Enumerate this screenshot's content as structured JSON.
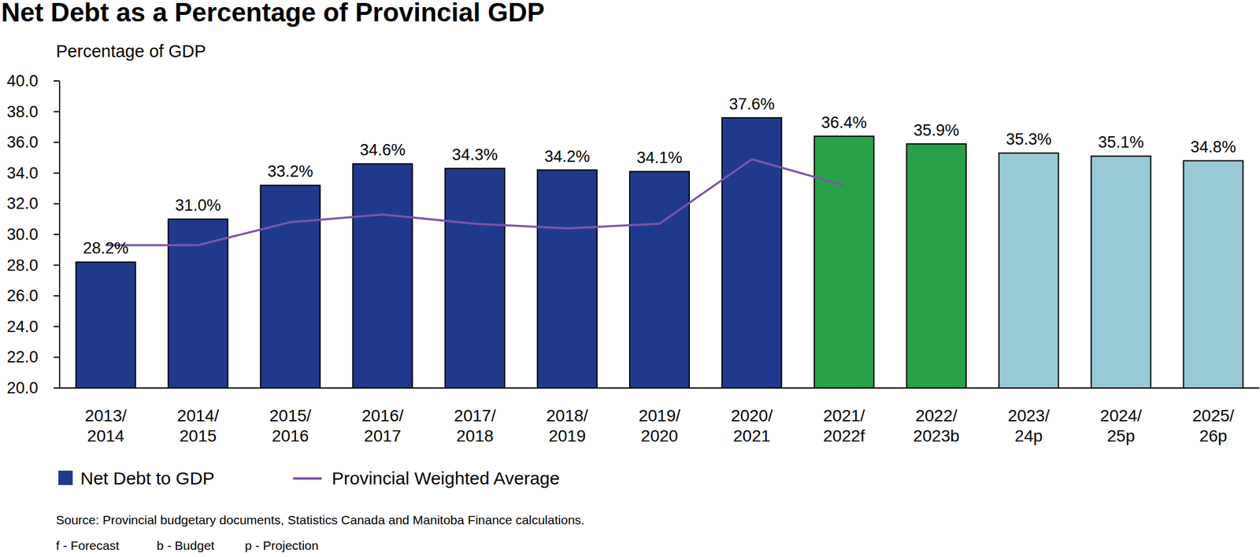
{
  "chart_data": {
    "type": "bar",
    "title": "Net Debt as a Percentage of Provincial GDP",
    "y_label": "Percentage of GDP",
    "categories": [
      "2013/2014",
      "2014/2015",
      "2015/2016",
      "2016/2017",
      "2017/2018",
      "2018/2019",
      "2019/2020",
      "2020/2021",
      "2021/2022f",
      "2022/2023b",
      "2023/24p",
      "2024/25p",
      "2025/26p"
    ],
    "series": [
      {
        "name": "Net Debt to GDP",
        "type": "bar",
        "color": "#1f3a8c",
        "colors": [
          "#1f3a8c",
          "#1f3a8c",
          "#1f3a8c",
          "#1f3a8c",
          "#1f3a8c",
          "#1f3a8c",
          "#1f3a8c",
          "#1f3a8c",
          "#27a047",
          "#27a047",
          "#98c9d6",
          "#98c9d6",
          "#98c9d6"
        ],
        "values": [
          28.2,
          31.0,
          33.2,
          34.6,
          34.3,
          34.2,
          34.1,
          37.6,
          36.4,
          35.9,
          35.3,
          35.1,
          34.8
        ],
        "value_labels": [
          "28.2%",
          "31.0%",
          "33.2%",
          "34.6%",
          "34.3%",
          "34.2%",
          "34.1%",
          "37.6%",
          "36.4%",
          "35.9%",
          "35.3%",
          "35.1%",
          "34.8%"
        ],
        "data_labels": true
      },
      {
        "name": "Provincial Weighted Average",
        "type": "line",
        "color": "#7d55aa",
        "values": [
          29.3,
          29.3,
          30.8,
          31.3,
          30.7,
          30.4,
          30.7,
          34.9,
          33.2,
          null,
          null,
          null,
          null
        ]
      }
    ],
    "ylim": [
      20,
      40
    ],
    "yticks": [
      {
        "value": 20,
        "label": "20.0"
      },
      {
        "value": 22,
        "label": "22.0"
      },
      {
        "value": 24,
        "label": "24.0"
      },
      {
        "value": 26,
        "label": "26.0"
      },
      {
        "value": 28,
        "label": "28.0"
      },
      {
        "value": 30,
        "label": "30.0"
      },
      {
        "value": 32,
        "label": "32.0"
      },
      {
        "value": 34,
        "label": "34.0"
      },
      {
        "value": 36,
        "label": "36.0"
      },
      {
        "value": 38,
        "label": "38.0"
      },
      {
        "value": 40,
        "label": "40.0"
      }
    ],
    "grid": false,
    "legend": "bottom-left",
    "source": "Source: Provincial budgetary documents, Statistics Canada and Manitoba Finance calculations.",
    "annotations": [
      "f - Forecast",
      "b - Budget",
      "p - Projection"
    ]
  }
}
